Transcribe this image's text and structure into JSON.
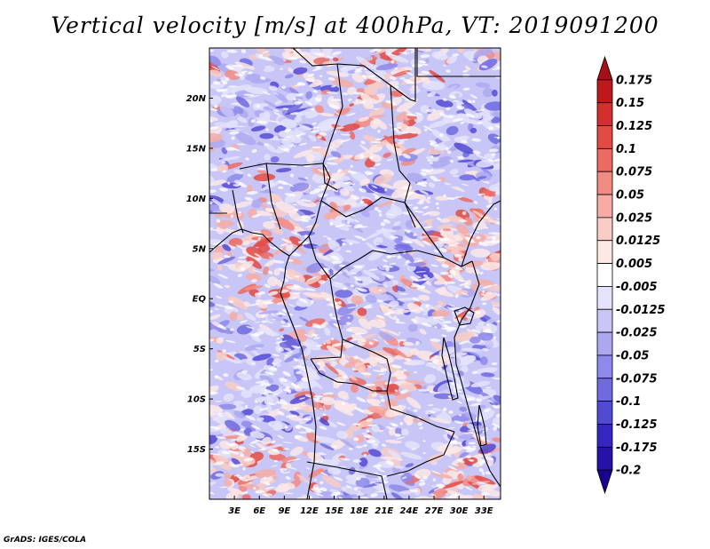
{
  "title": "Vertical velocity [m/s] at 400hPa, VT: 2019091200",
  "footer": "GrADS: IGES/COLA",
  "map": {
    "lon_range": [
      0,
      35
    ],
    "lat_range": [
      -20,
      25
    ],
    "lat_ticks": [
      {
        "value": 20,
        "label": "20N"
      },
      {
        "value": 15,
        "label": "15N"
      },
      {
        "value": 10,
        "label": "10N"
      },
      {
        "value": 5,
        "label": "5N"
      },
      {
        "value": 0,
        "label": "EQ"
      },
      {
        "value": -5,
        "label": "5S"
      },
      {
        "value": -10,
        "label": "10S"
      },
      {
        "value": -15,
        "label": "15S"
      }
    ],
    "lon_ticks": [
      {
        "value": 3,
        "label": "3E"
      },
      {
        "value": 6,
        "label": "6E"
      },
      {
        "value": 9,
        "label": "9E"
      },
      {
        "value": 12,
        "label": "12E"
      },
      {
        "value": 15,
        "label": "15E"
      },
      {
        "value": 18,
        "label": "18E"
      },
      {
        "value": 21,
        "label": "21E"
      },
      {
        "value": 24,
        "label": "24E"
      },
      {
        "value": 27,
        "label": "27E"
      },
      {
        "value": 30,
        "label": "30E"
      },
      {
        "value": 33,
        "label": "33E"
      }
    ]
  },
  "colorbar": {
    "levels": [
      "0.175",
      "0.15",
      "0.125",
      "0.1",
      "0.075",
      "0.05",
      "0.025",
      "0.0125",
      "0.005",
      "-0.005",
      "-0.0125",
      "-0.025",
      "-0.05",
      "-0.075",
      "-0.1",
      "-0.125",
      "-0.175",
      "-0.2"
    ],
    "colors": [
      "#a50f15",
      "#c0171d",
      "#d42f2e",
      "#e24a44",
      "#ec6a61",
      "#f28b82",
      "#f6aca4",
      "#f9ccc6",
      "#fce8e5",
      "#ffffff",
      "#e4e3fb",
      "#c8c6f6",
      "#aba8f0",
      "#8e89ea",
      "#7069e0",
      "#534ad4",
      "#3526c2",
      "#2612a8",
      "#170490"
    ]
  }
}
